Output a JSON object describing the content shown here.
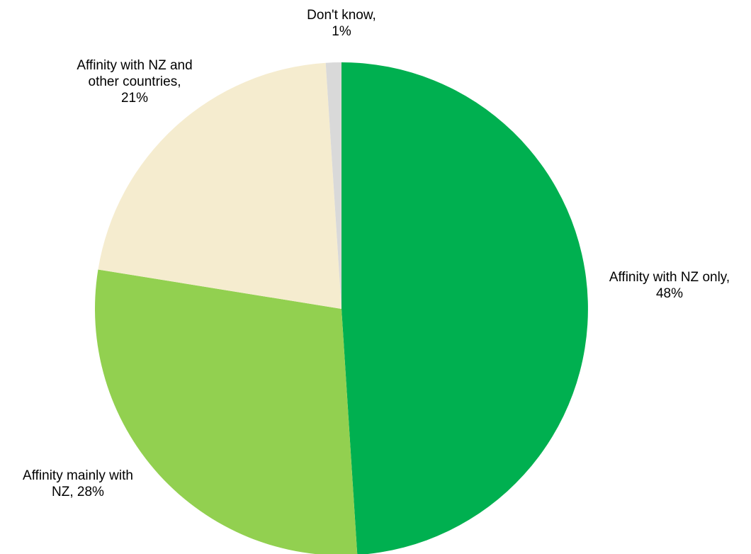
{
  "chart_data": {
    "type": "pie",
    "title": "",
    "start_angle_deg": 0,
    "direction": "clockwise",
    "slices": [
      {
        "label": "Affinity with NZ only",
        "value": 48,
        "display_lines": [
          "Affinity with NZ only,",
          "48%"
        ],
        "color": "#00B050"
      },
      {
        "label": "Affinity mainly with NZ",
        "value": 28,
        "display_lines": [
          "Affinity mainly with",
          "NZ, 28%"
        ],
        "color": "#92D050"
      },
      {
        "label": "Affinity with NZ and other countries",
        "value": 21,
        "display_lines": [
          "Affinity with NZ and",
          "other countries,",
          "21%"
        ],
        "color": "#F5ECCF"
      },
      {
        "label": "Don't know",
        "value": 1,
        "display_lines": [
          "Don't know,",
          "1%"
        ],
        "color": "#D9D9D9"
      }
    ]
  }
}
